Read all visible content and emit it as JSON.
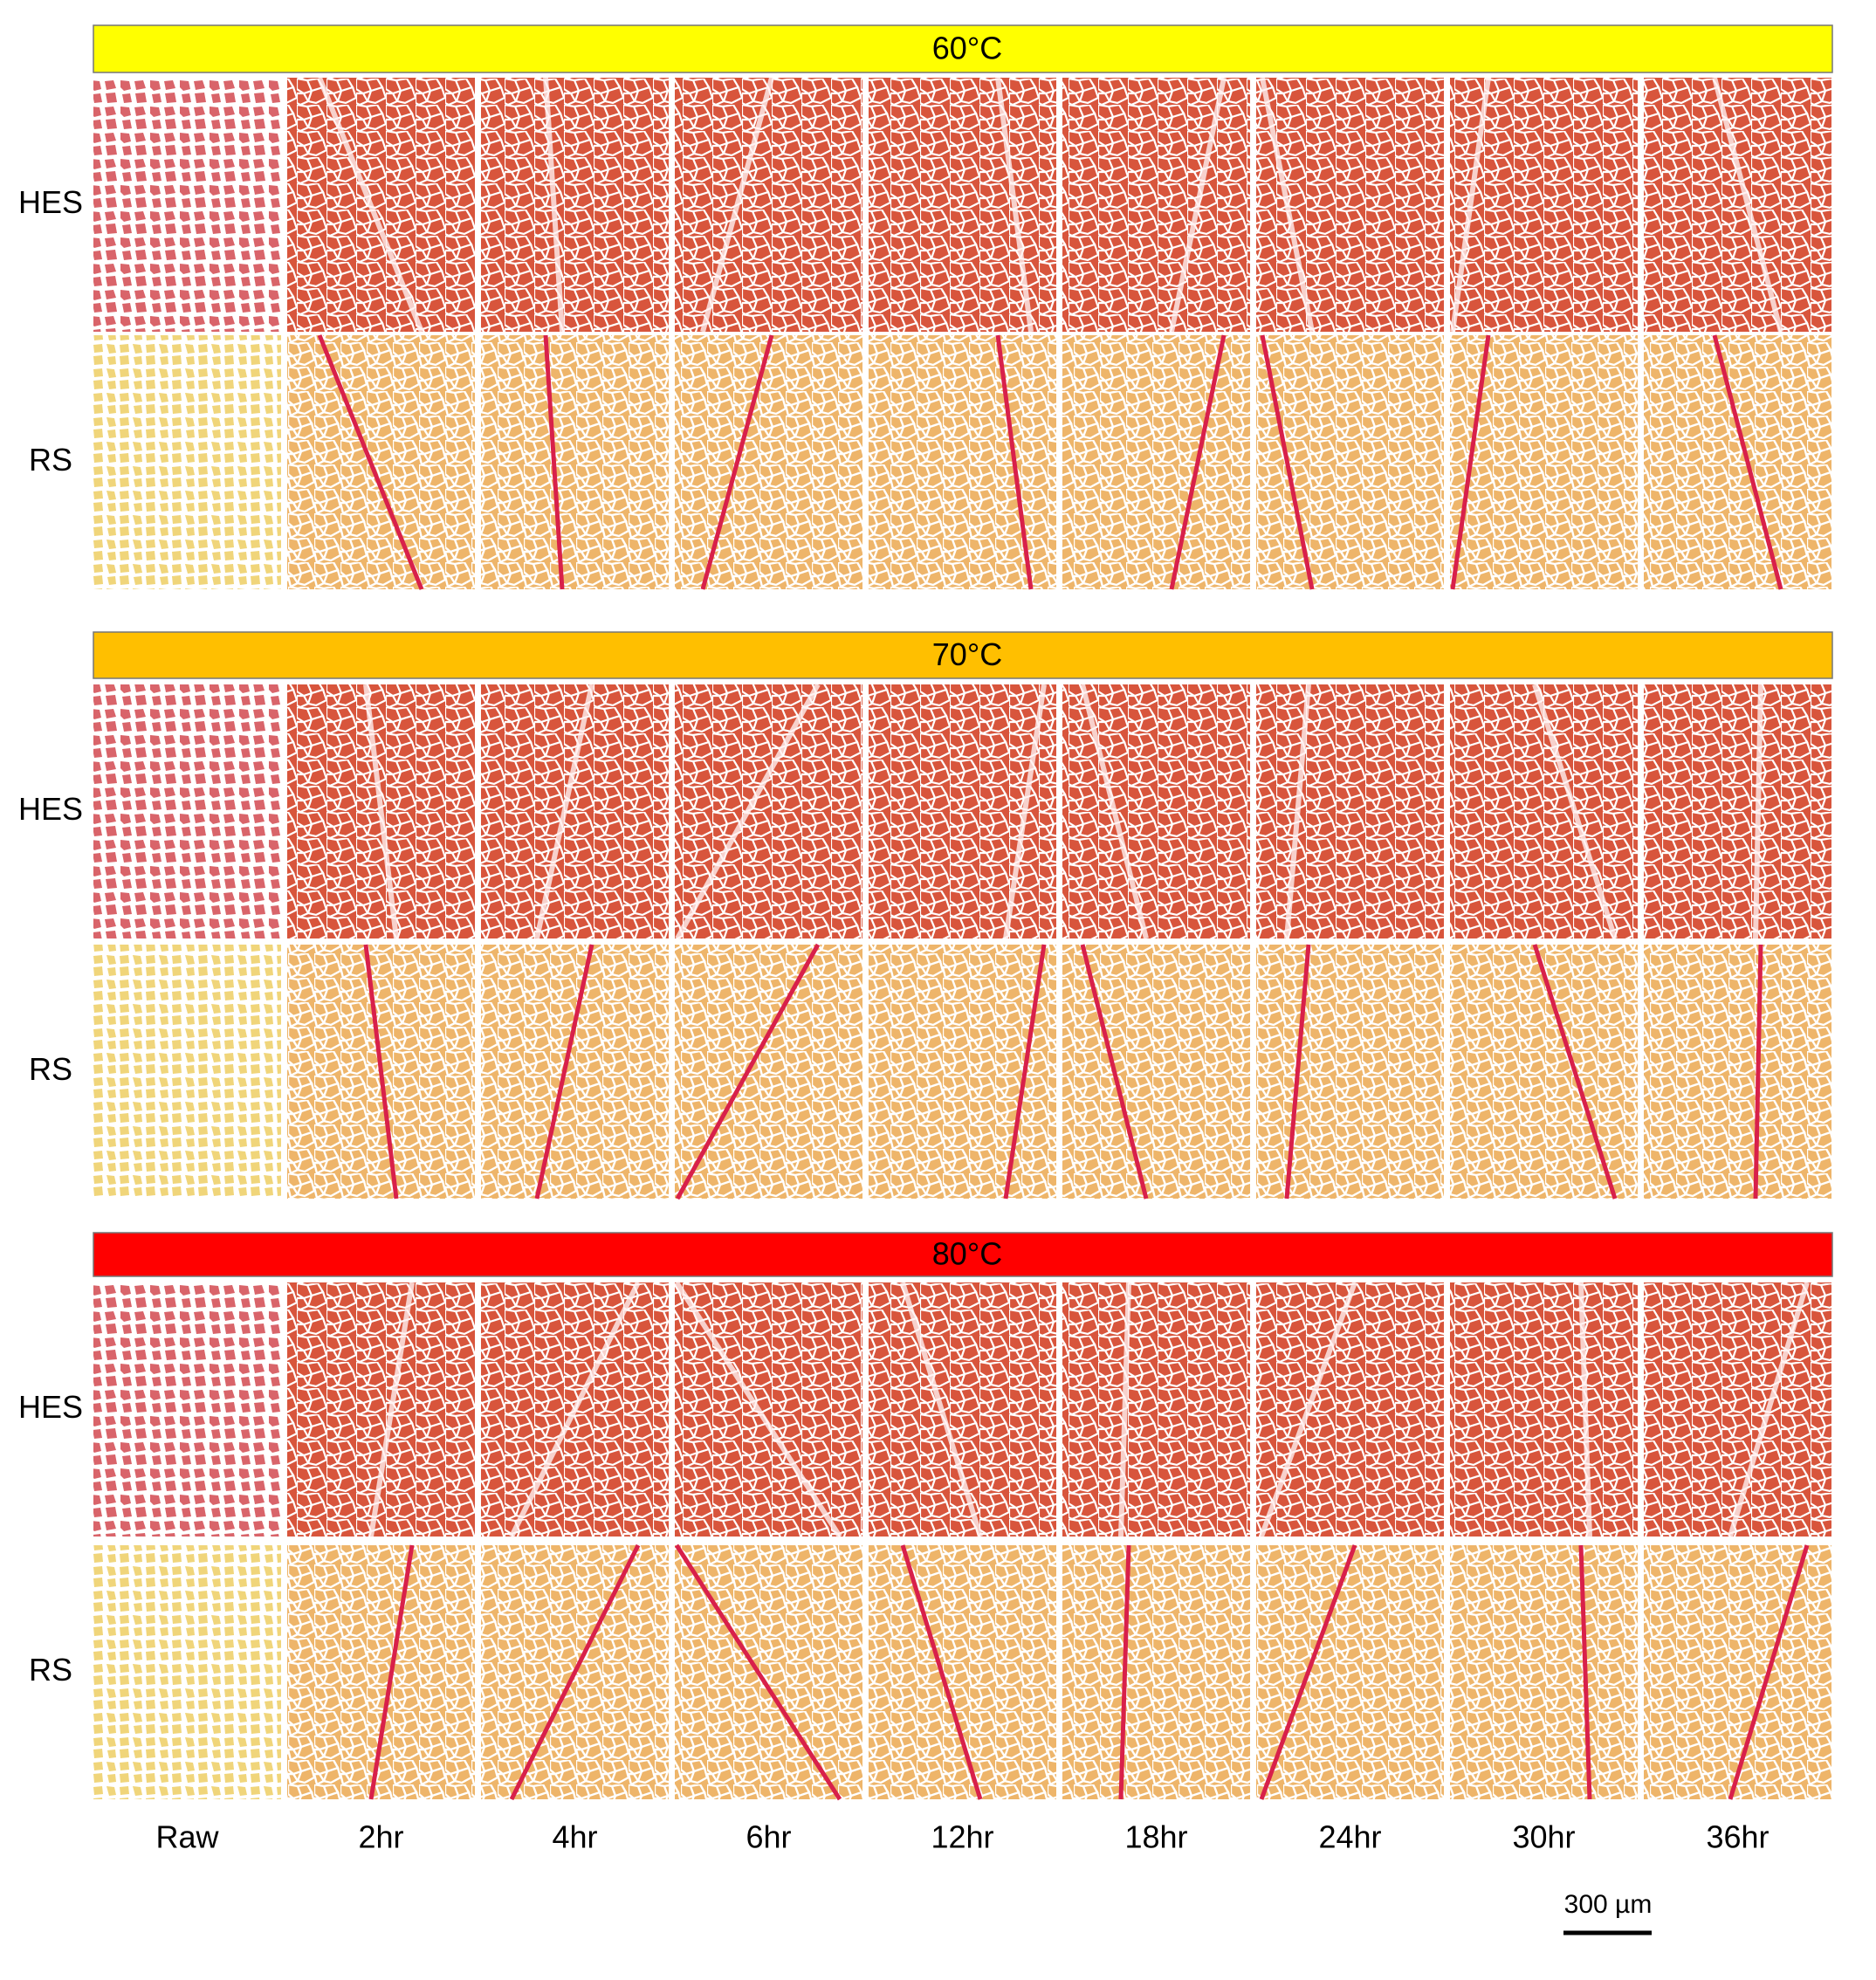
{
  "sections": [
    {
      "title": "60°C",
      "rows": [
        "HES",
        "RS"
      ]
    },
    {
      "title": "70°C",
      "rows": [
        "HES",
        "RS"
      ]
    },
    {
      "title": "80°C",
      "rows": [
        "HES",
        "RS"
      ]
    }
  ],
  "columns": [
    "Raw",
    "2hr",
    "4hr",
    "6hr",
    "12hr",
    "18hr",
    "24hr",
    "30hr",
    "36hr"
  ],
  "scale_bar": "300 µm"
}
